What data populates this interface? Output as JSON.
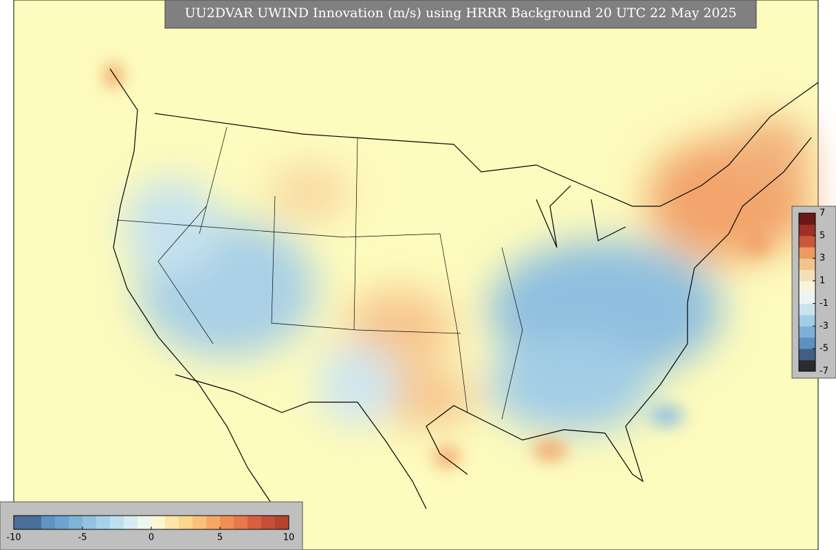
{
  "title": "UU2DVAR UWIND Innovation (m/s) using HRRR Background 20 UTC 22 May 2025",
  "colorbar_bottom": {
    "lim": [
      -10,
      10
    ],
    "ticks": [
      -10,
      -5,
      0,
      5,
      10
    ],
    "colors": [
      "#4a6f98",
      "#4a6f98",
      "#5f93c4",
      "#6fa3cf",
      "#7fb3d8",
      "#93c3e0",
      "#a8d2e8",
      "#bfe0ee",
      "#d6ecf3",
      "#eef6f0",
      "#fcf7d0",
      "#fde6a6",
      "#fcd58e",
      "#f9c07a",
      "#f5a866",
      "#f08f55",
      "#e87849",
      "#d9603e",
      "#c54f38",
      "#b4432f"
    ]
  },
  "colorbar_right": {
    "lim": [
      -7,
      7
    ],
    "ticks": [
      7,
      5,
      3,
      1,
      -1,
      -3,
      -5,
      -7
    ],
    "colors": [
      "#2b2b2b",
      "#3f5f84",
      "#5d8fbf",
      "#7eb0d6",
      "#a3cde4",
      "#c9e4ee",
      "#edf5f4",
      "#f8f3dc",
      "#f4e0b8",
      "#f0c48a",
      "#ec9a5e",
      "#c8573b",
      "#9e3127",
      "#6b1818"
    ]
  }
}
